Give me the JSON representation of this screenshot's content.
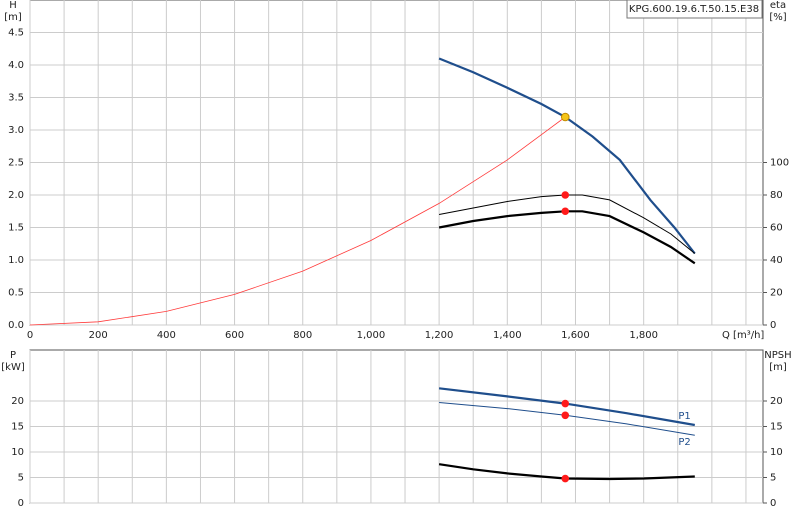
{
  "chart_data": [
    {
      "type": "line",
      "title": "KPG.600.19.6.T.50.15.E38",
      "ylabel": "H",
      "yunit": "[m]",
      "y2label": "eta",
      "y2unit": "[%]",
      "xlabel": "Q [m³/h]",
      "xlim": [
        0,
        2150
      ],
      "ylim": [
        0,
        5
      ],
      "y2lim": [
        0,
        200
      ],
      "xticks": [
        0,
        200,
        400,
        600,
        800,
        {
          "value": 1000,
          "label": "1,000"
        },
        {
          "value": 1200,
          "label": "1,200"
        },
        {
          "value": 1400,
          "label": "1,400"
        },
        {
          "value": 1600,
          "label": "1,600"
        },
        {
          "value": 1800,
          "label": "1,800"
        }
      ],
      "xminorticks": [
        100,
        300,
        500,
        700,
        900,
        1100,
        1300,
        1500,
        1700,
        1900,
        2000,
        2100
      ],
      "yticks": [
        {
          "value": 0,
          "label": "0.0"
        },
        {
          "value": 0.5,
          "label": "0.5"
        },
        {
          "value": 1,
          "label": "1.0"
        },
        {
          "value": 1.5,
          "label": "1.5"
        },
        {
          "value": 2,
          "label": "2.0"
        },
        {
          "value": 2.5,
          "label": "2.5"
        },
        {
          "value": 3,
          "label": "3.0"
        },
        {
          "value": 3.5,
          "label": "3.5"
        },
        {
          "value": 4,
          "label": "4.0"
        },
        {
          "value": 4.5,
          "label": "4.5"
        }
      ],
      "y2ticks": [
        0,
        20,
        40,
        60,
        80,
        100
      ],
      "grid": true,
      "series": [
        {
          "color": "#ff3b3b",
          "linewidth": 0.8,
          "x": [
            0,
            200,
            400,
            600,
            800,
            1000,
            1200,
            1400,
            1570
          ],
          "values": [
            0,
            0.05,
            0.21,
            0.47,
            0.83,
            1.3,
            1.87,
            2.54,
            3.2
          ]
        },
        {
          "color": "#1f4e8c",
          "linewidth": 2.2,
          "x": [
            1200,
            1300,
            1400,
            1500,
            1570,
            1650,
            1730,
            1820,
            1890,
            1950
          ],
          "values": [
            4.1,
            3.89,
            3.65,
            3.4,
            3.2,
            2.9,
            2.54,
            1.92,
            1.5,
            1.1
          ]
        },
        {
          "color": "#000000",
          "linewidth": 1,
          "axis": "y2",
          "x": [
            1200,
            1300,
            1400,
            1500,
            1570,
            1620,
            1700,
            1800,
            1880,
            1950
          ],
          "values": [
            68,
            72,
            76,
            79,
            80,
            80,
            77,
            66,
            56,
            44
          ]
        },
        {
          "color": "#000000",
          "linewidth": 2.2,
          "axis": "y2",
          "x": [
            1200,
            1300,
            1400,
            1500,
            1570,
            1620,
            1700,
            1800,
            1880,
            1950
          ],
          "values": [
            60,
            64,
            67,
            69,
            70,
            70,
            67,
            57,
            48,
            38
          ]
        }
      ],
      "markers": [
        {
          "x": 1570,
          "y": 3.2,
          "color": "#f5c518"
        },
        {
          "x": 1570,
          "y": 80,
          "color": "#ff1a1a",
          "axis": "y2"
        },
        {
          "x": 1570,
          "y": 70,
          "color": "#ff1a1a",
          "axis": "y2"
        }
      ]
    },
    {
      "type": "line",
      "ylabel": "P",
      "yunit": "[kW]",
      "y2label": "NPSH",
      "y2unit": "[m]",
      "xlim": [
        0,
        2150
      ],
      "ylim": [
        0,
        30
      ],
      "y2lim": [
        0,
        30
      ],
      "xticks": [
        0,
        200,
        400,
        600,
        800,
        1000,
        1200,
        1400,
        1600,
        1800
      ],
      "xminorticks": [
        100,
        300,
        500,
        700,
        900,
        1100,
        1300,
        1500,
        1700,
        1900,
        2000,
        2100
      ],
      "yticks": [
        0,
        5,
        10,
        15,
        20
      ],
      "y2ticks": [
        0,
        5,
        10,
        15,
        20
      ],
      "grid": true,
      "series": [
        {
          "name": "P1",
          "color": "#1f4e8c",
          "linewidth": 2.2,
          "x": [
            1200,
            1400,
            1570,
            1750,
            1950
          ],
          "values": [
            22.5,
            20.9,
            19.5,
            17.6,
            15.3
          ]
        },
        {
          "name": "P2",
          "color": "#1f4e8c",
          "linewidth": 1,
          "x": [
            1200,
            1400,
            1570,
            1750,
            1950
          ],
          "values": [
            19.7,
            18.5,
            17.2,
            15.5,
            13.3
          ]
        },
        {
          "color": "#000000",
          "linewidth": 2.2,
          "axis": "y2",
          "x": [
            1200,
            1300,
            1400,
            1500,
            1570,
            1700,
            1800,
            1950
          ],
          "values": [
            7.6,
            6.6,
            5.8,
            5.2,
            4.8,
            4.7,
            4.8,
            5.2
          ]
        }
      ],
      "markers": [
        {
          "x": 1570,
          "y": 19.5,
          "color": "#ff1a1a"
        },
        {
          "x": 1570,
          "y": 17.2,
          "color": "#ff1a1a"
        },
        {
          "x": 1570,
          "y": 4.8,
          "color": "#ff1a1a",
          "axis": "y2"
        }
      ]
    }
  ]
}
